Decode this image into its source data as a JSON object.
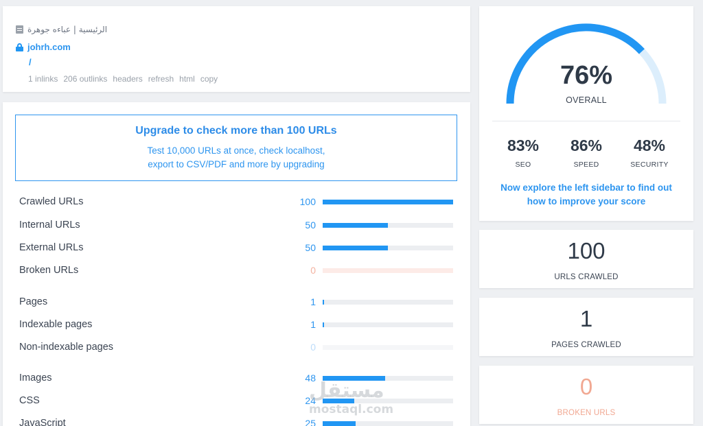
{
  "page": {
    "title": "الرئيسية | عباءه جوهرة",
    "domain": "johrh.com",
    "path": "/",
    "links": [
      "1 inlinks",
      "206 outlinks",
      "headers",
      "refresh",
      "html",
      "copy"
    ]
  },
  "upgrade": {
    "title": "Upgrade to check more than 100 URLs",
    "line1": "Test 10,000 URLs at once, check localhost,",
    "line2": "export to CSV/PDF and more by upgrading"
  },
  "stats": [
    {
      "label": "Crawled URLs",
      "value": "100",
      "fraction": 1.0
    },
    {
      "label": "Internal URLs",
      "value": "50",
      "fraction": 0.5
    },
    {
      "label": "External URLs",
      "value": "50",
      "fraction": 0.5
    },
    {
      "label": "Broken URLs",
      "value": "0",
      "fraction": 0
    },
    {
      "label": "Pages",
      "value": "1",
      "fraction": 0.01
    },
    {
      "label": "Indexable pages",
      "value": "1",
      "fraction": 0.01
    },
    {
      "label": "Non-indexable pages",
      "value": "0",
      "fraction": 0
    },
    {
      "label": "Images",
      "value": "48",
      "fraction": 0.48
    },
    {
      "label": "CSS",
      "value": "24",
      "fraction": 0.24
    },
    {
      "label": "JavaScript",
      "value": "25",
      "fraction": 0.25
    }
  ],
  "score": {
    "overall_value": "76%",
    "overall_fraction": 0.76,
    "overall_label": "OVERALL",
    "seo_value": "83%",
    "seo_label": "SEO",
    "speed_value": "86%",
    "speed_label": "SPEED",
    "security_value": "48%",
    "security_label": "SECURITY",
    "explore_line1": "Now explore the left sidebar to find out",
    "explore_line2": "how to improve your score"
  },
  "counts": {
    "urls_value": "100",
    "urls_label": "URLS CRAWLED",
    "pages_value": "1",
    "pages_label": "PAGES CRAWLED",
    "broken_value": "0",
    "broken_label": "BROKEN URLS"
  },
  "watermark": {
    "ar": "مستقل",
    "en": "mostaql.com"
  },
  "colors": {
    "accent": "#2196f3",
    "accent_light": "#dceefc",
    "broken": "#f1a892"
  }
}
